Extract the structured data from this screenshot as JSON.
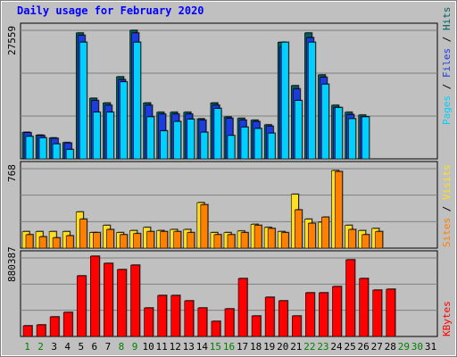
{
  "chart_data": [
    {
      "type": "bar",
      "title": "Daily usage for February 2020",
      "categories": [
        1,
        2,
        3,
        4,
        5,
        6,
        7,
        8,
        9,
        10,
        11,
        12,
        13,
        14,
        15,
        16,
        17,
        18,
        19,
        20,
        21,
        22,
        23,
        24,
        25,
        26,
        27,
        28,
        29,
        30,
        31
      ],
      "weekend_days": [
        1,
        2,
        8,
        9,
        15,
        16,
        22,
        23,
        29,
        30
      ],
      "ymax_label": "27559",
      "series": [
        {
          "name": "Hits",
          "color": "#006060",
          "values": [
            5700,
            5100,
            4500,
            3500,
            27000,
            13000,
            12000,
            17600,
            27559,
            12000,
            10000,
            10000,
            10000,
            8600,
            12000,
            9000,
            8700,
            8300,
            7300,
            25000,
            15700,
            27000,
            18000,
            11500,
            10000,
            9400,
            null,
            null,
            null,
            null,
            null
          ]
        },
        {
          "name": "Files",
          "color": "#1c3ce0",
          "values": [
            5600,
            5000,
            4400,
            3400,
            26500,
            12500,
            11500,
            17000,
            27000,
            11500,
            9600,
            9600,
            9600,
            8300,
            11500,
            8700,
            8300,
            8000,
            7000,
            24000,
            15000,
            26000,
            17500,
            11000,
            9500,
            9000,
            null,
            null,
            null,
            null,
            null
          ]
        },
        {
          "name": "Pages",
          "color": "#00d0ff",
          "values": [
            4800,
            4500,
            3200,
            2000,
            25000,
            10000,
            10000,
            16500,
            25000,
            9000,
            6000,
            8000,
            8500,
            5700,
            10800,
            5000,
            6800,
            6500,
            5500,
            25000,
            12500,
            25000,
            16000,
            11000,
            8600,
            9000,
            null,
            null,
            null,
            null,
            null
          ]
        }
      ],
      "legend_label": "Pages / Files / Hits"
    },
    {
      "type": "bar",
      "ymax_label": "768",
      "series": [
        {
          "name": "Visits",
          "color": "#ffe020",
          "values": [
            160,
            160,
            160,
            160,
            350,
            150,
            220,
            150,
            170,
            200,
            170,
            180,
            180,
            440,
            150,
            150,
            165,
            230,
            200,
            160,
            520,
            280,
            250,
            750,
            220,
            170,
            190,
            null,
            null,
            null,
            null
          ]
        },
        {
          "name": "Sites",
          "color": "#ff8000",
          "values": [
            130,
            110,
            100,
            120,
            280,
            150,
            180,
            130,
            140,
            160,
            160,
            160,
            150,
            420,
            130,
            130,
            150,
            220,
            190,
            150,
            370,
            240,
            300,
            740,
            180,
            130,
            160,
            null,
            null,
            null,
            null
          ]
        }
      ],
      "legend_label": "Sites / Visits"
    },
    {
      "type": "bar",
      "ymax_label": "880387",
      "series": [
        {
          "name": "KBytes",
          "color": "#ff0000",
          "values": [
            120000,
            130000,
            220000,
            270000,
            680000,
            900000,
            820000,
            750000,
            800000,
            320000,
            460000,
            460000,
            400000,
            320000,
            170000,
            310000,
            650000,
            230000,
            440000,
            400000,
            230000,
            490000,
            490000,
            560000,
            860000,
            650000,
            520000,
            530000,
            null,
            null,
            null
          ]
        }
      ],
      "legend_label": "KBytes"
    }
  ]
}
